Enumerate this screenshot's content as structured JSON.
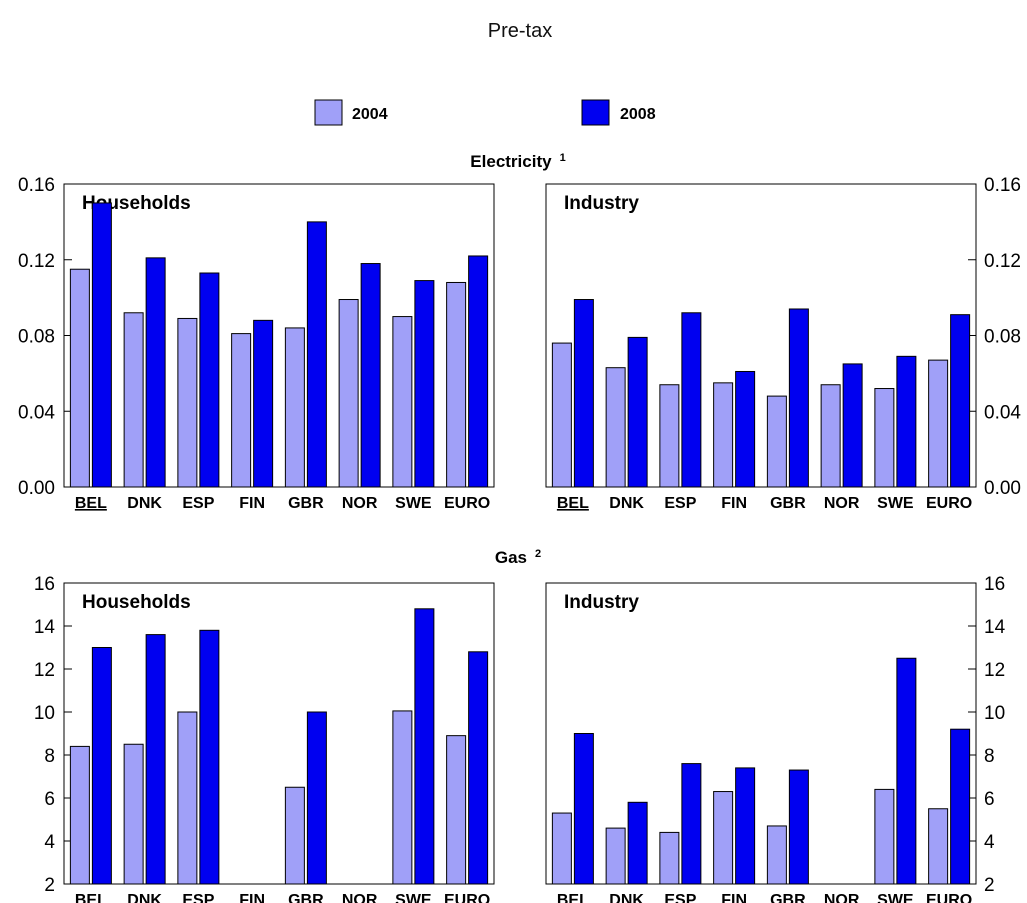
{
  "title": "Pre-tax",
  "colors": {
    "series_2004": "#a0a0f8",
    "series_2008": "#0000f0",
    "outline": "#000000"
  },
  "legend": [
    {
      "label": "2004",
      "color": "#a0a0f8"
    },
    {
      "label": "2008",
      "color": "#0000f0"
    }
  ],
  "sections": [
    {
      "title": "Electricity",
      "note": "1"
    },
    {
      "title": "Gas",
      "note": "2"
    }
  ],
  "chart_data": [
    {
      "type": "bar",
      "section": "Electricity",
      "title": "Households",
      "categories": [
        "BEL",
        "DNK",
        "ESP",
        "FIN",
        "GBR",
        "NOR",
        "SWE",
        "EURO"
      ],
      "bold_categories": [
        "BEL"
      ],
      "series": [
        {
          "name": "2004",
          "values": [
            0.115,
            0.092,
            0.089,
            0.081,
            0.084,
            0.099,
            0.09,
            0.108
          ]
        },
        {
          "name": "2008",
          "values": [
            0.15,
            0.121,
            0.113,
            0.088,
            0.14,
            0.118,
            0.109,
            0.122
          ]
        }
      ],
      "ylim": [
        0,
        0.16
      ],
      "yticks": [
        "0.00",
        "0.04",
        "0.08",
        "0.12",
        "0.16"
      ],
      "grid": false,
      "legend": "top"
    },
    {
      "type": "bar",
      "section": "Electricity",
      "title": "Industry",
      "categories": [
        "BEL",
        "DNK",
        "ESP",
        "FIN",
        "GBR",
        "NOR",
        "SWE",
        "EURO"
      ],
      "bold_categories": [
        "BEL"
      ],
      "series": [
        {
          "name": "2004",
          "values": [
            0.076,
            0.063,
            0.054,
            0.055,
            0.048,
            0.054,
            0.052,
            0.067
          ]
        },
        {
          "name": "2008",
          "values": [
            0.099,
            0.079,
            0.092,
            0.061,
            0.094,
            0.065,
            0.069,
            0.091
          ]
        }
      ],
      "ylim": [
        0,
        0.16
      ],
      "yticks": [
        "0.00",
        "0.04",
        "0.08",
        "0.12",
        "0.16"
      ],
      "grid": false,
      "legend": "top"
    },
    {
      "type": "bar",
      "section": "Gas",
      "title": "Households",
      "categories": [
        "BEL",
        "DNK",
        "ESP",
        "FIN",
        "GBR",
        "NOR",
        "SWE",
        "EURO"
      ],
      "bold_categories": [
        "BEL"
      ],
      "series": [
        {
          "name": "2004",
          "values": [
            8.4,
            8.5,
            10.0,
            null,
            6.5,
            null,
            10.05,
            8.9
          ]
        },
        {
          "name": "2008",
          "values": [
            13.0,
            13.6,
            13.8,
            null,
            10.0,
            null,
            14.8,
            12.8
          ]
        }
      ],
      "ylim": [
        2,
        16
      ],
      "yticks": [
        "2",
        "4",
        "6",
        "8",
        "10",
        "12",
        "14",
        "16"
      ],
      "grid": false,
      "legend": "top"
    },
    {
      "type": "bar",
      "section": "Gas",
      "title": "Industry",
      "categories": [
        "BEL",
        "DNK",
        "ESP",
        "FIN",
        "GBR",
        "NOR",
        "SWE",
        "EURO"
      ],
      "bold_categories": [
        "BEL"
      ],
      "series": [
        {
          "name": "2004",
          "values": [
            5.3,
            4.6,
            4.4,
            6.3,
            4.7,
            null,
            6.4,
            5.5
          ]
        },
        {
          "name": "2008",
          "values": [
            9.0,
            5.8,
            7.6,
            7.4,
            7.3,
            null,
            12.5,
            9.2
          ]
        }
      ],
      "ylim": [
        2,
        16
      ],
      "yticks": [
        "2",
        "4",
        "6",
        "8",
        "10",
        "12",
        "14",
        "16"
      ],
      "grid": false,
      "legend": "top"
    }
  ]
}
